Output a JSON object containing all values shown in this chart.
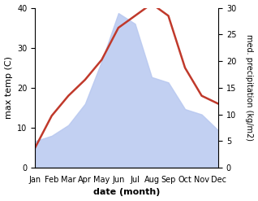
{
  "months": [
    "Jan",
    "Feb",
    "Mar",
    "Apr",
    "May",
    "Jun",
    "Jul",
    "Aug",
    "Sep",
    "Oct",
    "Nov",
    "Dec"
  ],
  "temperature": [
    5,
    13,
    18,
    22,
    27,
    35,
    38,
    41,
    38,
    25,
    18,
    16
  ],
  "precipitation": [
    5,
    6,
    8,
    12,
    20,
    29,
    27,
    17,
    16,
    11,
    10,
    7
  ],
  "temp_color": "#c0392b",
  "precip_fill_color": "#b8c8f0",
  "xlabel": "date (month)",
  "ylabel_left": "max temp (C)",
  "ylabel_right": "med. precipitation (kg/m2)",
  "ylim_left": [
    0,
    40
  ],
  "ylim_right": [
    0,
    30
  ],
  "yticks_left": [
    0,
    10,
    20,
    30,
    40
  ],
  "yticks_right": [
    0,
    5,
    10,
    15,
    20,
    25,
    30
  ]
}
